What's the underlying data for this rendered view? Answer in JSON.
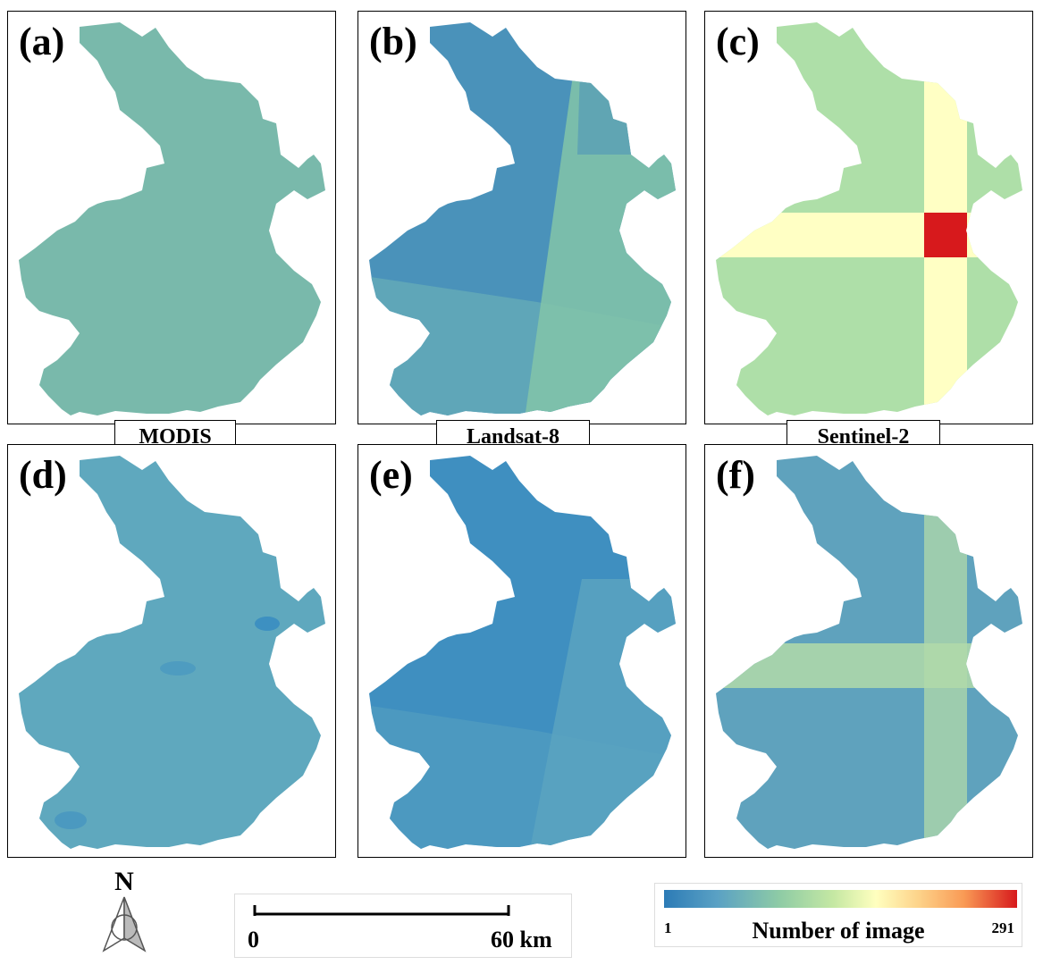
{
  "panels": [
    {
      "label": "(a)"
    },
    {
      "label": "(b)"
    },
    {
      "label": "(c)"
    },
    {
      "label": "(d)"
    },
    {
      "label": "(e)"
    },
    {
      "label": "(f)"
    }
  ],
  "sensors": [
    "MODIS",
    "Landsat-8",
    "Sentinel-2"
  ],
  "north_arrow": {
    "label": "N"
  },
  "scale_bar": {
    "start": "0",
    "end": "60 km"
  },
  "legend": {
    "title": "Number of image",
    "min": "1",
    "max": "291"
  },
  "colors": {
    "modis_fill": "#79b9ab",
    "landsat_dark": "#4a92ba",
    "landsat_mid": "#5fa6b8",
    "landsat_light": "#82c4a8",
    "sentinel_green": "#aedfa8",
    "sentinel_yellow": "#ffffc4",
    "sentinel_red": "#d7191c",
    "d_fill": "#5fa8be",
    "e_fill": "#3f8fc0",
    "f_fill": "#5fa2bd",
    "f_light": "#b2daa9"
  }
}
